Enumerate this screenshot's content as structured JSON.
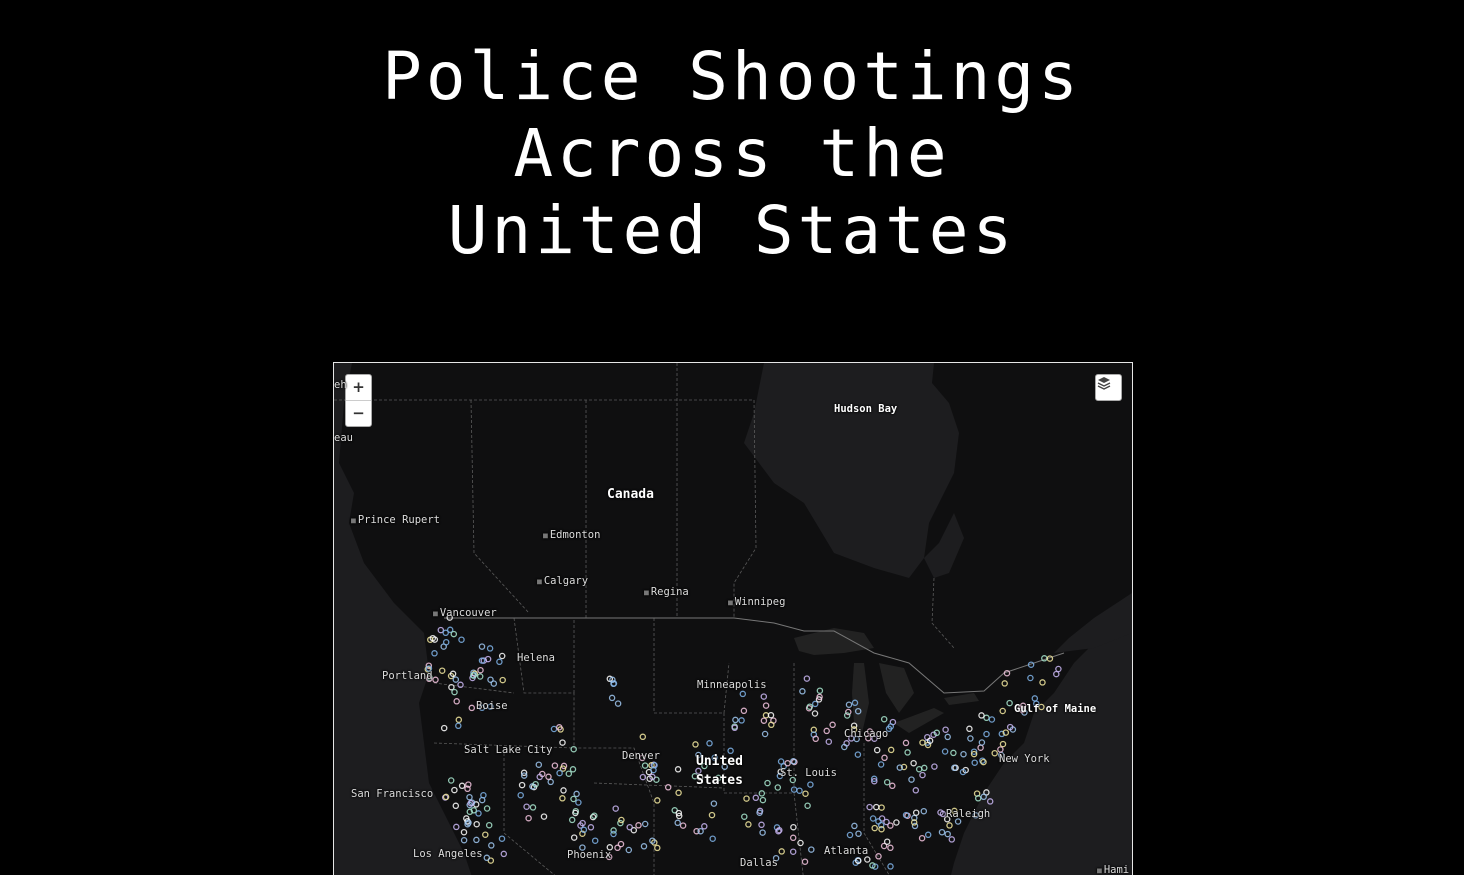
{
  "title": {
    "line1": "Police Shootings",
    "line2": "Across the",
    "line3": "United States"
  },
  "controls": {
    "zoom_in": "+",
    "zoom_out": "−",
    "layers_icon": "layers-icon"
  },
  "labels": {
    "hudson_bay": "Hudson Bay",
    "canada": "Canada",
    "prince_rupert": "Prince Rupert",
    "edmonton": "Edmonton",
    "calgary": "Calgary",
    "regina": "Regina",
    "winnipeg": "Winnipeg",
    "vancouver": "Vancouver",
    "helena": "Helena",
    "portland": "Portland",
    "minneapolis": "Minneapolis",
    "boise": "Boise",
    "gulf_of_maine": "Gulf of Maine",
    "chicago": "Chicago",
    "salt_lake_city": "Salt Lake City",
    "denver": "Denver",
    "united": "United",
    "states": "States",
    "st_louis": "St. Louis",
    "new_york": "New York",
    "san_francisco": "San Francisco",
    "raleigh": "Raleigh",
    "atlanta": "Atlanta",
    "los_angeles": "Los Angeles",
    "phoenix": "Phoenix",
    "dallas": "Dallas",
    "hami": "Hami",
    "edge_top": "eh",
    "edge_mid": "eau"
  },
  "colors": {
    "background": "#000000",
    "land": "#0f0f10",
    "water": "#1d1d1f",
    "border": "#555555",
    "marker_palette": [
      "#9fc7f0",
      "#7fb3e8",
      "#a8e6cf",
      "#ffffff",
      "#f5c6e0",
      "#c9b6f2",
      "#f3e9a0"
    ]
  }
}
